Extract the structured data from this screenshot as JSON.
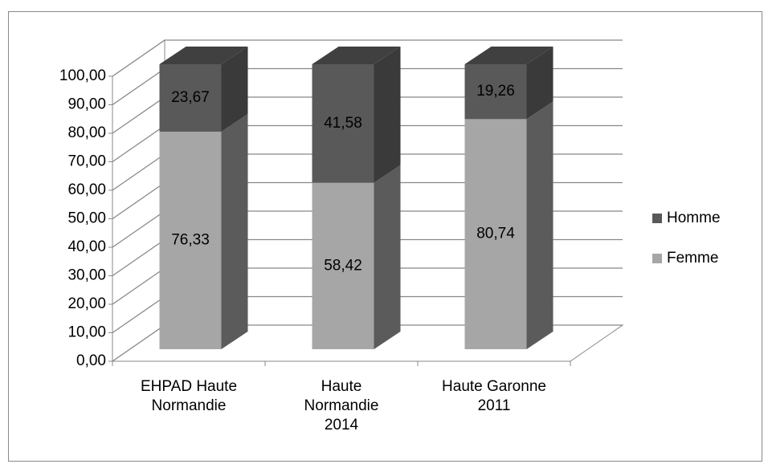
{
  "chart_data": {
    "type": "bar3d_stacked",
    "categories": [
      "EHPAD Haute\nNormandie",
      "Haute\nNormandie\n2014",
      "Haute Garonne\n2011"
    ],
    "series": [
      {
        "name": "Femme",
        "color": "#a6a6a6",
        "values": [
          76.33,
          58.42,
          80.74
        ],
        "value_labels": [
          "76,33",
          "58,42",
          "80,74"
        ]
      },
      {
        "name": "Homme",
        "color": "#595959",
        "values": [
          23.67,
          41.58,
          19.26
        ],
        "value_labels": [
          "23,67",
          "41,58",
          "19,26"
        ]
      }
    ],
    "ylim": [
      0,
      100
    ],
    "yticks": [
      {
        "value": 0,
        "label": "0,00"
      },
      {
        "value": 10,
        "label": "10,00"
      },
      {
        "value": 20,
        "label": "20,00"
      },
      {
        "value": 30,
        "label": "30,00"
      },
      {
        "value": 40,
        "label": "40,00"
      },
      {
        "value": 50,
        "label": "50,00"
      },
      {
        "value": 60,
        "label": "60,00"
      },
      {
        "value": 70,
        "label": "70,00"
      },
      {
        "value": 80,
        "label": "80,00"
      },
      {
        "value": 90,
        "label": "90,00"
      },
      {
        "value": 100,
        "label": "100,00"
      }
    ],
    "grid": true,
    "legend": "right"
  }
}
